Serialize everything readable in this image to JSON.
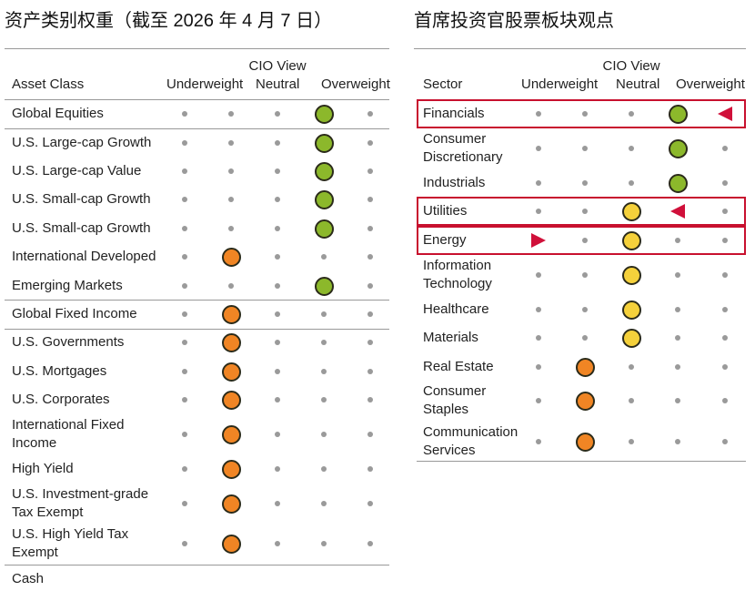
{
  "left": {
    "title": "资产类别权重（截至 2026 年 4 月 7 日）",
    "header": {
      "label": "Asset Class",
      "underweight": "Underweight",
      "cio_view": "CIO View",
      "neutral": "Neutral",
      "overweight": "Overweight"
    },
    "rows": [
      {
        "label": "Global Equities",
        "rating": 3,
        "color": "#8cb82b",
        "divider": true
      },
      {
        "label": "U.S. Large-cap Growth",
        "rating": 3,
        "color": "#8cb82b"
      },
      {
        "label": "U.S. Large-cap Value",
        "rating": 3,
        "color": "#8cb82b"
      },
      {
        "label": "U.S. Small-cap Growth",
        "rating": 3,
        "color": "#8cb82b"
      },
      {
        "label": "U.S. Small-cap Growth",
        "rating": 3,
        "color": "#8cb82b"
      },
      {
        "label": "International Developed",
        "rating": 1,
        "color": "#f08524"
      },
      {
        "label": "Emerging Markets",
        "rating": 3,
        "color": "#8cb82b",
        "divider": true
      },
      {
        "label": "Global Fixed Income",
        "rating": 1,
        "color": "#f08524",
        "divider": true
      },
      {
        "label": "U.S. Governments",
        "rating": 1,
        "color": "#f08524"
      },
      {
        "label": "U.S. Mortgages",
        "rating": 1,
        "color": "#f08524"
      },
      {
        "label": "U.S. Corporates",
        "rating": 1,
        "color": "#f08524"
      },
      {
        "label": [
          "International Fixed",
          "Income"
        ],
        "rating": 1,
        "color": "#f08524"
      },
      {
        "label": "High Yield",
        "rating": 1,
        "color": "#f08524"
      },
      {
        "label": [
          "U.S. Investment-grade",
          "Tax Exempt"
        ],
        "rating": 1,
        "color": "#f08524"
      },
      {
        "label": [
          "U.S. High Yield Tax",
          "Exempt"
        ],
        "rating": 1,
        "color": "#f08524",
        "divider": true
      },
      {
        "label": "Cash"
      }
    ]
  },
  "right": {
    "title": "首席投资官股票板块观点",
    "header": {
      "label": "Sector",
      "underweight": "Underweight",
      "cio_view": "CIO View",
      "neutral": "Neutral",
      "overweight": "Overweight"
    },
    "rows": [
      {
        "label": "Financials",
        "rating": 3,
        "color": "#8cb82b",
        "highlight": true,
        "arrow_from": 4
      },
      {
        "label": [
          "Consumer",
          "Discretionary"
        ],
        "rating": 3,
        "color": "#8cb82b"
      },
      {
        "label": "Industrials",
        "rating": 3,
        "color": "#8cb82b"
      },
      {
        "label": "Utilities",
        "rating": 2,
        "color": "#f5d13b",
        "highlight": true,
        "arrow_from": 3
      },
      {
        "label": "Energy",
        "rating": 2,
        "color": "#f5d13b",
        "highlight": true,
        "arrow_from": 0
      },
      {
        "label": [
          "Information",
          "Technology"
        ],
        "rating": 2,
        "color": "#f5d13b"
      },
      {
        "label": "Healthcare",
        "rating": 2,
        "color": "#f5d13b"
      },
      {
        "label": "Materials",
        "rating": 2,
        "color": "#f5d13b"
      },
      {
        "label": "Real Estate",
        "rating": 1,
        "color": "#f08524"
      },
      {
        "label": [
          "Consumer",
          "Staples"
        ],
        "rating": 1,
        "color": "#f08524"
      },
      {
        "label": [
          "Communication",
          "Services"
        ],
        "rating": 1,
        "color": "#f08524",
        "divider": true
      }
    ]
  }
}
